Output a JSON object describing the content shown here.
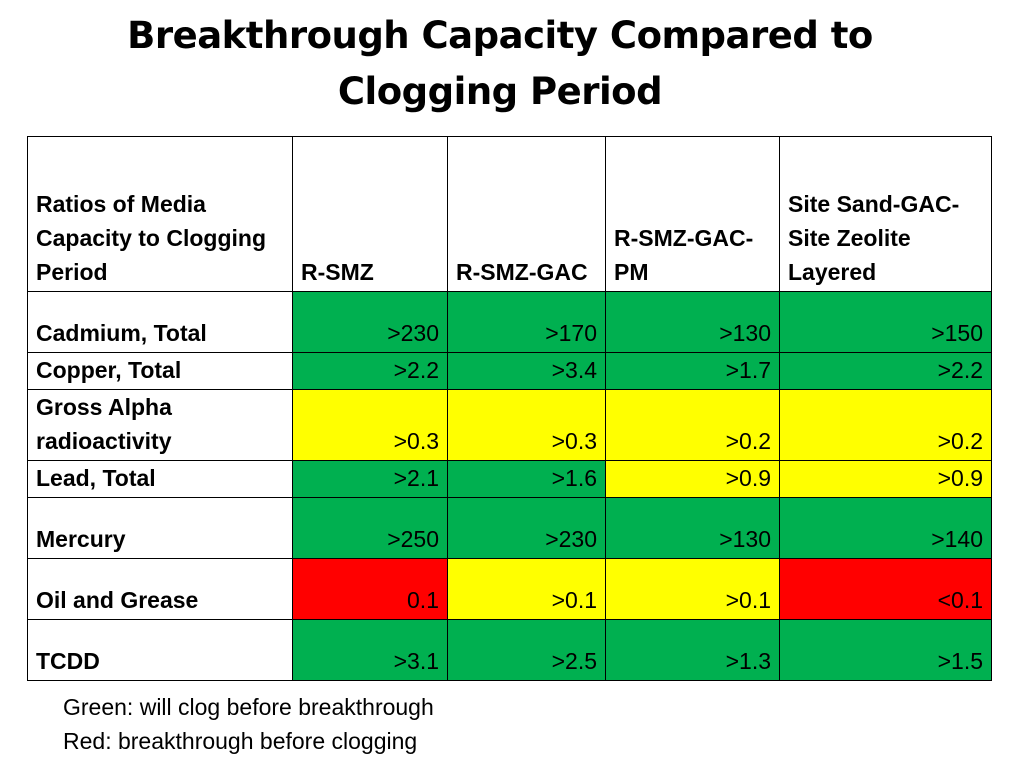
{
  "title_line1": "Breakthrough Capacity Compared to",
  "title_line2": "Clogging Period",
  "table": {
    "header": [
      "Ratios of Media Capacity to Clogging Period",
      "R-SMZ",
      "R-SMZ-GAC",
      "R-SMZ-GAC-PM",
      "Site Sand-GAC-Site Zeolite Layered"
    ],
    "rows": [
      {
        "label": "Cadmium, Total",
        "values": [
          ">230",
          ">170",
          ">130",
          ">150"
        ],
        "colors": [
          "green",
          "green",
          "green",
          "green"
        ]
      },
      {
        "label": "Copper, Total",
        "values": [
          ">2.2",
          ">3.4",
          ">1.7",
          ">2.2"
        ],
        "colors": [
          "green",
          "green",
          "green",
          "green"
        ]
      },
      {
        "label": "Gross Alpha radioactivity",
        "values": [
          ">0.3",
          ">0.3",
          ">0.2",
          ">0.2"
        ],
        "colors": [
          "yellow",
          "yellow",
          "yellow",
          "yellow"
        ]
      },
      {
        "label": "Lead, Total",
        "values": [
          ">2.1",
          ">1.6",
          ">0.9",
          ">0.9"
        ],
        "colors": [
          "green",
          "green",
          "yellow",
          "yellow"
        ]
      },
      {
        "label": "Mercury",
        "values": [
          ">250",
          ">230",
          ">130",
          ">140"
        ],
        "colors": [
          "green",
          "green",
          "green",
          "green"
        ]
      },
      {
        "label": "Oil and Grease",
        "values": [
          "0.1",
          ">0.1",
          ">0.1",
          "<0.1"
        ],
        "colors": [
          "red",
          "yellow",
          "yellow",
          "red"
        ]
      },
      {
        "label": "TCDD",
        "values": [
          ">3.1",
          ">2.5",
          ">1.3",
          ">1.5"
        ],
        "colors": [
          "green",
          "green",
          "green",
          "green"
        ]
      }
    ]
  },
  "legend": {
    "green": "Green: will clog before breakthrough",
    "red": "Red: breakthrough before clogging"
  },
  "colors": {
    "green": "#00b050",
    "yellow": "#ffff00",
    "red": "#ff0000"
  }
}
